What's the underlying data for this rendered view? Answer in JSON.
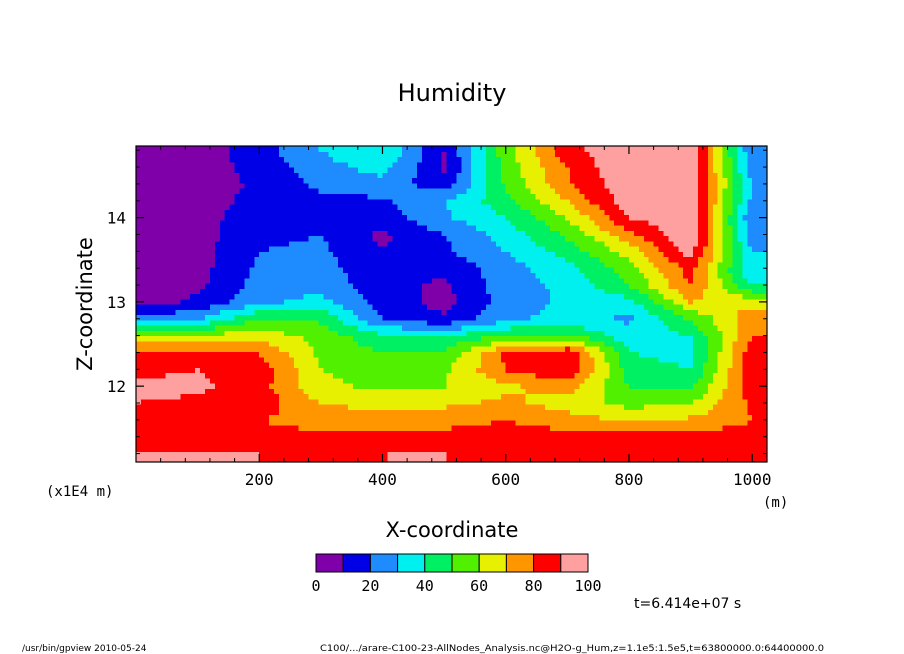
{
  "chart_data": {
    "type": "heatmap",
    "title": "Humidity",
    "xlabel": "X-coordinate",
    "ylabel": "Z-coordinate",
    "x_unit": "(m)",
    "y_unit": "(x1E4 m)",
    "xlim": [
      0,
      1024
    ],
    "ylim": [
      11.1,
      14.85
    ],
    "x_ticks": [
      200,
      400,
      600,
      800,
      1000
    ],
    "x_tick_labels": [
      "200",
      "400",
      "600",
      "800",
      "1000"
    ],
    "y_ticks": [
      12,
      13,
      14
    ],
    "y_tick_labels": [
      "12",
      "13",
      "14"
    ],
    "colorbar": {
      "levels": [
        0,
        10,
        20,
        30,
        40,
        50,
        60,
        70,
        80,
        90,
        100
      ],
      "labels": [
        "0",
        "20",
        "40",
        "60",
        "80",
        "100"
      ],
      "colors": [
        "#7f00a8",
        "#0000e6",
        "#1e8cff",
        "#00f0f0",
        "#00f064",
        "#50f000",
        "#e6f000",
        "#ff9600",
        "#ff0000",
        "#ffa0a0"
      ]
    },
    "profile_z": [
      11.2,
      11.4,
      11.6,
      11.8,
      12.0,
      12.2,
      12.4,
      12.6,
      12.8,
      13.0,
      13.2,
      13.4,
      13.6,
      13.8,
      14.0,
      14.2,
      14.4,
      14.6,
      14.8
    ],
    "profile_x": [
      0,
      100,
      200,
      300,
      400,
      500,
      600,
      700,
      800,
      900,
      1000
    ],
    "values": [
      [
        92,
        90,
        90,
        88,
        90,
        90,
        88,
        88,
        86,
        88,
        86
      ],
      [
        84,
        84,
        84,
        82,
        84,
        84,
        86,
        84,
        84,
        84,
        84
      ],
      [
        82,
        80,
        80,
        76,
        76,
        76,
        80,
        74,
        70,
        72,
        80
      ],
      [
        90,
        88,
        86,
        70,
        66,
        68,
        72,
        66,
        56,
        60,
        82
      ],
      [
        92,
        92,
        84,
        62,
        58,
        60,
        68,
        74,
        50,
        48,
        86
      ],
      [
        88,
        90,
        86,
        60,
        56,
        58,
        80,
        90,
        46,
        40,
        88
      ],
      [
        82,
        84,
        80,
        58,
        50,
        52,
        82,
        88,
        40,
        36,
        86
      ],
      [
        60,
        62,
        66,
        56,
        42,
        40,
        50,
        52,
        34,
        40,
        80
      ],
      [
        22,
        30,
        50,
        48,
        20,
        12,
        28,
        34,
        28,
        50,
        78
      ],
      [
        6,
        12,
        28,
        34,
        16,
        6,
        24,
        32,
        36,
        70,
        66
      ],
      [
        4,
        8,
        24,
        26,
        14,
        8,
        26,
        32,
        50,
        80,
        40
      ],
      [
        4,
        6,
        22,
        24,
        12,
        12,
        26,
        36,
        56,
        84,
        30
      ],
      [
        4,
        6,
        20,
        22,
        10,
        18,
        30,
        44,
        64,
        94,
        30
      ],
      [
        4,
        6,
        18,
        20,
        8,
        20,
        34,
        52,
        76,
        100,
        24
      ],
      [
        4,
        6,
        16,
        18,
        14,
        28,
        40,
        60,
        90,
        100,
        20
      ],
      [
        4,
        4,
        14,
        18,
        18,
        30,
        46,
        70,
        96,
        100,
        26
      ],
      [
        4,
        4,
        12,
        22,
        26,
        14,
        52,
        78,
        98,
        100,
        30
      ],
      [
        4,
        4,
        14,
        26,
        34,
        8,
        54,
        80,
        100,
        100,
        24
      ],
      [
        4,
        4,
        16,
        30,
        40,
        10,
        56,
        86,
        100,
        100,
        20
      ]
    ]
  },
  "annotations": {
    "time": "t=6.414e+07 s",
    "footer_left": "/usr/bin/gpview   2010-05-24",
    "footer_right": "C100/.../arare-C100-23-AllNodes_Analysis.nc@H2O-g_Hum,z=1.1e5:1.5e5,t=63800000.0:64400000.0"
  }
}
